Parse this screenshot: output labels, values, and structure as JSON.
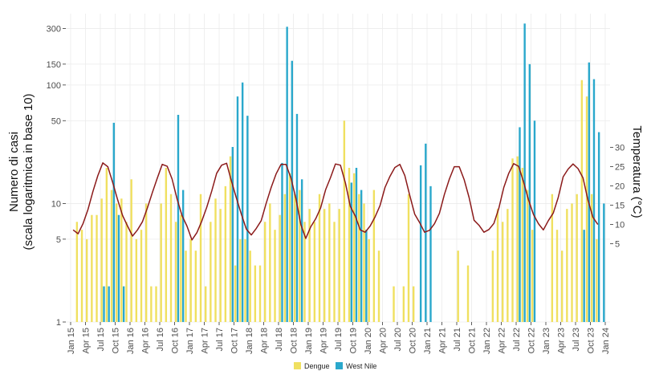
{
  "chart_data": {
    "type": "bar",
    "ylabel_line1": "Numero di casi",
    "ylabel_line2": "(scala logaritmica in base 10)",
    "y2label": "Temperatura (°C)",
    "yscale": "log10",
    "ylim": [
      1,
      400
    ],
    "yticks": [
      "1",
      "5",
      "10",
      "50",
      "100",
      "150",
      "300"
    ],
    "y2ticks": [
      "5",
      "10",
      "15",
      "20",
      "25",
      "30"
    ],
    "xticks": [
      "Jan 15",
      "Apr 15",
      "Jul 15",
      "Oct 15",
      "Jan 16",
      "Apr 16",
      "Jul 16",
      "Oct 16",
      "Jan 17",
      "Apr 17",
      "Jul 17",
      "Oct 17",
      "Jan 18",
      "Apr 18",
      "Jul 18",
      "Oct 18",
      "Jan 19",
      "Apr 19",
      "Jul 19",
      "Oct 19",
      "Jan 20",
      "Apr 20",
      "Jul 20",
      "Oct 20",
      "Jan 21",
      "Apr 21",
      "Jul 21",
      "Oct 21",
      "Jan 22",
      "Apr 22",
      "Jul 22",
      "Oct 22",
      "Jan 23",
      "Apr 23",
      "Jul 23",
      "Oct 23",
      "Jan 24"
    ],
    "grid": true,
    "legend_position": "bottom",
    "colors": {
      "dengue": "#f0e060",
      "westnile": "#2aa8cc",
      "temperature": "#8b1a1a"
    },
    "series": [
      {
        "name": "Dengue",
        "key": "dengue",
        "values": [
          0,
          7,
          6,
          5,
          8,
          8,
          11,
          20,
          13,
          10,
          11,
          7,
          16,
          5,
          6,
          10,
          2,
          2,
          10,
          20,
          12,
          7,
          8,
          4,
          5,
          4,
          12,
          2,
          7,
          11,
          9,
          14,
          25,
          3,
          5,
          5,
          4,
          3,
          3,
          7,
          10,
          6,
          8,
          12,
          18,
          12,
          13,
          7,
          9,
          7,
          12,
          9,
          10,
          7,
          9,
          50,
          20,
          18,
          12,
          10,
          5,
          13,
          4,
          0,
          0,
          2,
          0,
          2,
          12,
          2,
          0,
          0,
          0,
          0,
          0,
          0,
          0,
          0,
          4,
          0,
          3,
          0,
          0,
          0,
          0,
          4,
          9,
          7,
          9,
          24,
          25,
          20,
          13,
          6,
          0,
          0,
          0,
          12,
          6,
          4,
          9,
          10,
          12,
          110,
          80,
          12,
          5,
          0,
          0
        ]
      },
      {
        "name": "West Nile",
        "key": "westnile",
        "values": [
          0,
          0,
          0,
          0,
          0,
          0,
          2,
          2,
          48,
          8,
          2,
          0,
          0,
          0,
          0,
          0,
          0,
          0,
          0,
          0,
          0,
          56,
          13,
          0,
          0,
          0,
          0,
          0,
          0,
          0,
          0,
          0,
          30,
          80,
          105,
          55,
          0,
          0,
          0,
          0,
          0,
          0,
          22,
          310,
          160,
          57,
          16,
          0,
          0,
          0,
          0,
          0,
          0,
          0,
          0,
          0,
          15,
          20,
          13,
          6,
          0,
          0,
          0,
          0,
          0,
          0,
          0,
          0,
          0,
          0,
          21,
          32,
          14,
          0,
          0,
          0,
          0,
          0,
          0,
          0,
          0,
          0,
          0,
          0,
          0,
          0,
          0,
          0,
          0,
          0,
          44,
          330,
          150,
          50,
          0,
          0,
          0,
          0,
          0,
          0,
          0,
          0,
          0,
          6,
          155,
          112,
          40,
          10,
          0
        ]
      },
      {
        "name": "Temperature",
        "key": "temperature",
        "unit": "°C",
        "values": [
          8.6,
          7.6,
          10.2,
          13.9,
          18.6,
          22.7,
          26.0,
          25.0,
          20.9,
          16.4,
          12.3,
          9.6,
          7.0,
          8.6,
          10.7,
          14.3,
          18.3,
          22.0,
          25.6,
          25.1,
          21.8,
          16.6,
          12.3,
          9.6,
          6.0,
          7.9,
          10.9,
          14.5,
          18.7,
          23.3,
          25.4,
          25.9,
          21.2,
          16.8,
          12.6,
          8.8,
          7.3,
          9.0,
          11.0,
          15.5,
          19.6,
          23.1,
          25.6,
          25.6,
          22.1,
          16.8,
          10.0,
          6.4,
          9.4,
          11.5,
          14.3,
          19.0,
          22.2,
          25.7,
          25.4,
          20.8,
          14.7,
          12.2,
          8.6,
          8.0,
          9.6,
          12.0,
          14.9,
          19.6,
          22.5,
          24.8,
          25.6,
          22.7,
          17.6,
          12.7,
          10.5,
          8.0,
          8.5,
          10.2,
          12.9,
          17.8,
          21.8,
          25.0,
          25.0,
          21.6,
          17.0,
          11.1,
          9.8,
          8.0,
          8.7,
          10.3,
          14.2,
          19.6,
          23.3,
          25.8,
          25.1,
          21.0,
          16.4,
          12.6,
          10.2,
          8.6,
          11.0,
          13.0,
          17.0,
          22.4,
          24.4,
          25.7,
          24.5,
          22.1,
          16.4,
          11.9,
          10.0
        ]
      }
    ]
  }
}
